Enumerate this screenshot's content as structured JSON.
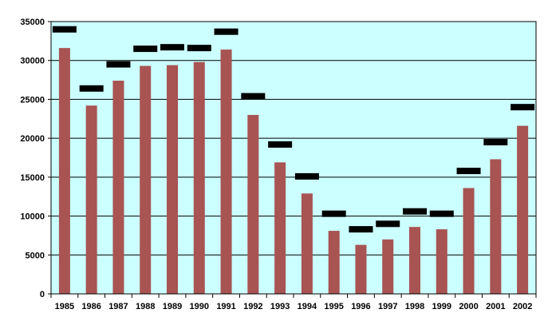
{
  "chart_data": {
    "type": "bar",
    "title": "",
    "xlabel": "",
    "ylabel": "",
    "categories": [
      "1985",
      "1986",
      "1987",
      "1988",
      "1989",
      "1990",
      "1991",
      "1992",
      "1993",
      "1994",
      "1995",
      "1996",
      "1997",
      "1998",
      "1999",
      "2000",
      "2001",
      "2002"
    ],
    "series": [
      {
        "type": "bar",
        "values": [
          31600,
          24200,
          27400,
          29300,
          29400,
          29800,
          31400,
          23000,
          16900,
          12900,
          8100,
          6300,
          7000,
          8600,
          8300,
          13600,
          17300,
          21600
        ]
      },
      {
        "type": "marker",
        "values": [
          34000,
          26400,
          29500,
          31500,
          31700,
          31600,
          33700,
          25400,
          19200,
          15100,
          10300,
          8300,
          9000,
          10600,
          10300,
          15800,
          19500,
          24000
        ]
      }
    ],
    "ylim": [
      0,
      35000
    ],
    "yticks": [
      "0",
      "5000",
      "10000",
      "15000",
      "20000",
      "25000",
      "30000",
      "35000"
    ],
    "grid": true,
    "legend": "none",
    "colors": {
      "plot_background": "#ccffff",
      "bar": "#a85452",
      "marker": "#000000",
      "gridline": "#000000"
    }
  }
}
